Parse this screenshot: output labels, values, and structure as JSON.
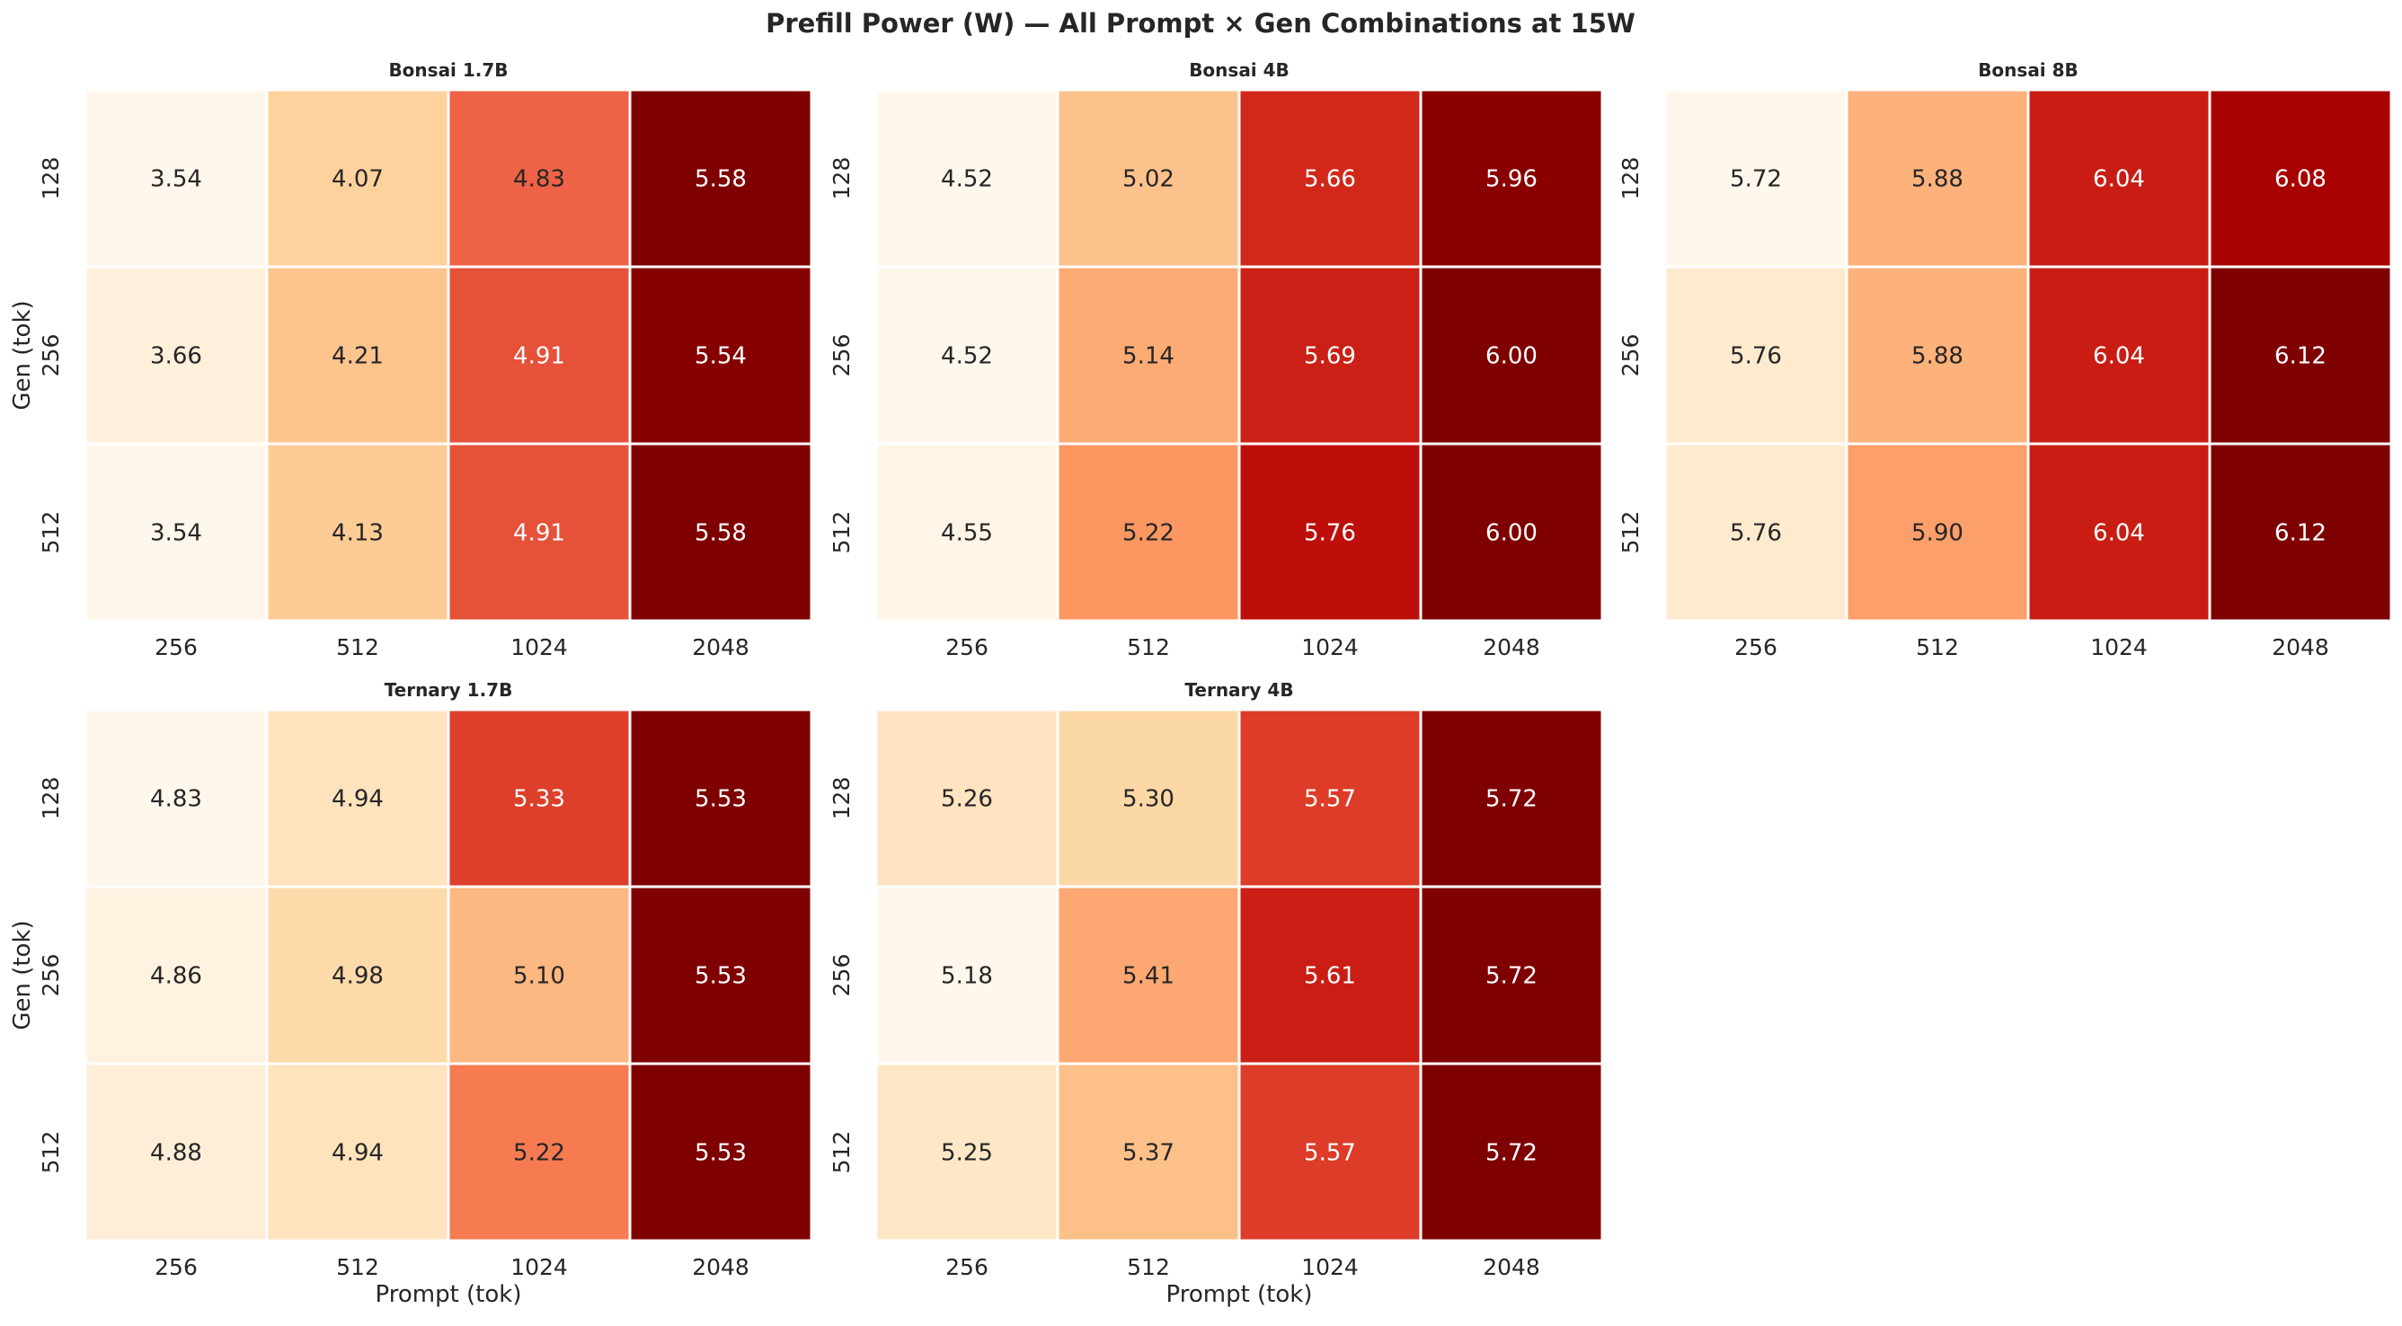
{
  "chart_data": {
    "type": "heatmap",
    "title": "Prefill Power (W) — All Prompt × Gen Combinations at 15W",
    "xlabel": "Prompt (tok)",
    "ylabel": "Gen (tok)",
    "x": [
      "256",
      "512",
      "1024",
      "2048"
    ],
    "y": [
      "128",
      "256",
      "512"
    ],
    "colormap": "OrRd",
    "colormap_anchors": [
      "#fff7ec",
      "#fee8c8",
      "#fdd49e",
      "#fdbb84",
      "#fc8d59",
      "#ef6548",
      "#d7301f",
      "#b30000",
      "#7f0000"
    ],
    "panels": [
      {
        "title": "Bonsai 1.7B",
        "values": [
          [
            3.54,
            4.07,
            4.83,
            5.58
          ],
          [
            3.66,
            4.21,
            4.91,
            5.54
          ],
          [
            3.54,
            4.13,
            4.91,
            5.58
          ]
        ]
      },
      {
        "title": "Bonsai 4B",
        "values": [
          [
            4.52,
            5.02,
            5.66,
            5.96
          ],
          [
            4.52,
            5.14,
            5.69,
            6.0
          ],
          [
            4.55,
            5.22,
            5.76,
            6.0
          ]
        ]
      },
      {
        "title": "Bonsai 8B",
        "values": [
          [
            5.72,
            5.88,
            6.04,
            6.08
          ],
          [
            5.76,
            5.88,
            6.04,
            6.12
          ],
          [
            5.76,
            5.9,
            6.04,
            6.12
          ]
        ]
      },
      {
        "title": "Ternary 1.7B",
        "values": [
          [
            4.83,
            4.94,
            5.33,
            5.53
          ],
          [
            4.86,
            4.98,
            5.1,
            5.53
          ],
          [
            4.88,
            4.94,
            5.22,
            5.53
          ]
        ]
      },
      {
        "title": "Ternary 4B",
        "values": [
          [
            5.26,
            5.3,
            5.57,
            5.72
          ],
          [
            5.18,
            5.41,
            5.61,
            5.72
          ],
          [
            5.25,
            5.37,
            5.57,
            5.72
          ]
        ]
      }
    ]
  }
}
